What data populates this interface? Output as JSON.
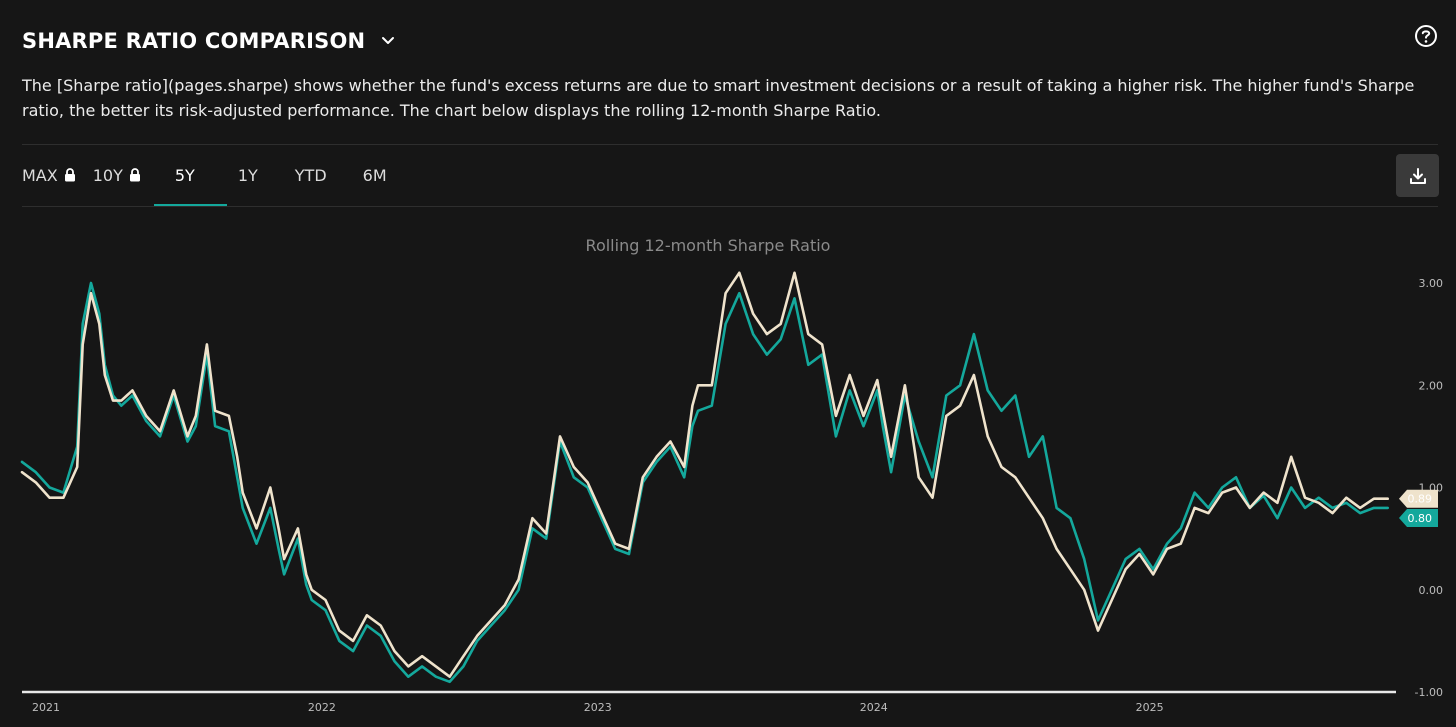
{
  "header": {
    "title": "SHARPE RATIO COMPARISON",
    "description": "The [Sharpe ratio](pages.sharpe) shows whether the fund's excess returns are due to smart investment decisions or a result of taking a higher risk. The higher fund's Sharpe ratio, the better its risk-adjusted performance. The chart below displays the rolling 12-month Sharpe Ratio."
  },
  "icons": {
    "dropdown": "chevron-down-icon",
    "help": "question-circle-icon",
    "lock": "lock-icon",
    "download": "download-icon"
  },
  "tabs": [
    {
      "label": "MAX",
      "locked": true,
      "active": false
    },
    {
      "label": "10Y",
      "locked": true,
      "active": false
    },
    {
      "label": "5Y",
      "locked": false,
      "active": true
    },
    {
      "label": "1Y",
      "locked": false,
      "active": false
    },
    {
      "label": "YTD",
      "locked": false,
      "active": false
    },
    {
      "label": "6M",
      "locked": false,
      "active": false
    }
  ],
  "colors": {
    "background": "#161616",
    "accent": "#14a89c",
    "series_teal": "#14a89c",
    "series_cream": "#efe3cc",
    "axis_line": "#e8e8e8"
  },
  "chart_data": {
    "type": "line",
    "title": "Rolling 12-month Sharpe Ratio",
    "xlabel": "",
    "ylabel": "",
    "x_tick_labels": [
      "2021",
      "2022",
      "2023",
      "2024",
      "2025"
    ],
    "y_tick_labels": [
      "3.00",
      "2.00",
      "1.00",
      "0.00",
      "-1.00"
    ],
    "ylim": [
      -1.0,
      3.0
    ],
    "xlim": [
      2021.0,
      2025.98
    ],
    "y_axis_position": "right",
    "grid": false,
    "legend": "none",
    "x": [
      2021.0,
      2021.05,
      2021.1,
      2021.15,
      2021.2,
      2021.22,
      2021.25,
      2021.28,
      2021.3,
      2021.33,
      2021.36,
      2021.4,
      2021.45,
      2021.5,
      2021.55,
      2021.6,
      2021.63,
      2021.67,
      2021.7,
      2021.75,
      2021.78,
      2021.8,
      2021.85,
      2021.9,
      2021.93,
      2021.95,
      2022.0,
      2022.03,
      2022.05,
      2022.1,
      2022.15,
      2022.2,
      2022.25,
      2022.3,
      2022.35,
      2022.4,
      2022.45,
      2022.5,
      2022.55,
      2022.6,
      2022.65,
      2022.7,
      2022.75,
      2022.8,
      2022.85,
      2022.9,
      2022.95,
      2023.0,
      2023.05,
      2023.1,
      2023.15,
      2023.2,
      2023.25,
      2023.3,
      2023.35,
      2023.4,
      2023.43,
      2023.45,
      2023.5,
      2023.55,
      2023.6,
      2023.65,
      2023.7,
      2023.75,
      2023.8,
      2023.85,
      2023.9,
      2023.95,
      2024.0,
      2024.05,
      2024.1,
      2024.12,
      2024.15,
      2024.2,
      2024.25,
      2024.3,
      2024.35,
      2024.4,
      2024.45,
      2024.5,
      2024.55,
      2024.6,
      2024.65,
      2024.7,
      2024.75,
      2024.8,
      2024.85,
      2024.9,
      2024.95,
      2025.0,
      2025.05,
      2025.1,
      2025.15,
      2025.2,
      2025.25,
      2025.3,
      2025.35,
      2025.4,
      2025.45,
      2025.5,
      2025.55,
      2025.6,
      2025.65,
      2025.7,
      2025.75,
      2025.8,
      2025.85,
      2025.9,
      2025.95
    ],
    "series": [
      {
        "color": "#14a89c",
        "last_label": "0.80",
        "values": [
          1.25,
          1.15,
          1.0,
          0.95,
          1.4,
          2.6,
          3.0,
          2.7,
          2.2,
          1.9,
          1.8,
          1.9,
          1.65,
          1.5,
          1.9,
          1.45,
          1.6,
          2.3,
          1.6,
          1.55,
          1.1,
          0.8,
          0.45,
          0.8,
          0.4,
          0.15,
          0.5,
          0.05,
          -0.1,
          -0.2,
          -0.5,
          -0.6,
          -0.35,
          -0.45,
          -0.7,
          -0.85,
          -0.75,
          -0.85,
          -0.9,
          -0.75,
          -0.5,
          -0.35,
          -0.2,
          0.0,
          0.6,
          0.5,
          1.45,
          1.1,
          1.0,
          0.7,
          0.4,
          0.35,
          1.05,
          1.25,
          1.4,
          1.1,
          1.6,
          1.75,
          1.8,
          2.6,
          2.9,
          2.5,
          2.3,
          2.45,
          2.85,
          2.2,
          2.3,
          1.5,
          1.95,
          1.6,
          1.95,
          1.6,
          1.15,
          1.9,
          1.45,
          1.1,
          1.9,
          2.0,
          2.5,
          1.95,
          1.75,
          1.9,
          1.3,
          1.5,
          0.8,
          0.7,
          0.3,
          -0.3,
          0.0,
          0.3,
          0.4,
          0.2,
          0.45,
          0.6,
          0.95,
          0.8,
          1.0,
          1.1,
          0.8,
          0.92,
          0.7,
          1.0,
          0.8,
          0.9,
          0.8,
          0.85,
          0.75,
          0.8,
          0.8
        ]
      },
      {
        "color": "#efe3cc",
        "last_label": "0.89",
        "values": [
          1.15,
          1.05,
          0.9,
          0.9,
          1.2,
          2.4,
          2.9,
          2.6,
          2.1,
          1.85,
          1.85,
          1.95,
          1.7,
          1.55,
          1.95,
          1.5,
          1.7,
          2.4,
          1.75,
          1.7,
          1.3,
          0.95,
          0.6,
          1.0,
          0.6,
          0.3,
          0.6,
          0.15,
          0.0,
          -0.1,
          -0.4,
          -0.5,
          -0.25,
          -0.35,
          -0.6,
          -0.75,
          -0.65,
          -0.75,
          -0.85,
          -0.65,
          -0.45,
          -0.3,
          -0.15,
          0.1,
          0.7,
          0.55,
          1.5,
          1.2,
          1.05,
          0.75,
          0.45,
          0.4,
          1.1,
          1.3,
          1.45,
          1.2,
          1.8,
          2.0,
          2.0,
          2.9,
          3.1,
          2.7,
          2.5,
          2.6,
          3.1,
          2.5,
          2.4,
          1.7,
          2.1,
          1.7,
          2.05,
          1.75,
          1.3,
          2.0,
          1.1,
          0.9,
          1.7,
          1.8,
          2.1,
          1.5,
          1.2,
          1.1,
          0.9,
          0.7,
          0.4,
          0.2,
          0.0,
          -0.4,
          -0.1,
          0.2,
          0.35,
          0.15,
          0.4,
          0.45,
          0.8,
          0.75,
          0.95,
          1.0,
          0.8,
          0.95,
          0.85,
          1.3,
          0.9,
          0.85,
          0.75,
          0.9,
          0.8,
          0.89,
          0.89
        ]
      }
    ]
  }
}
